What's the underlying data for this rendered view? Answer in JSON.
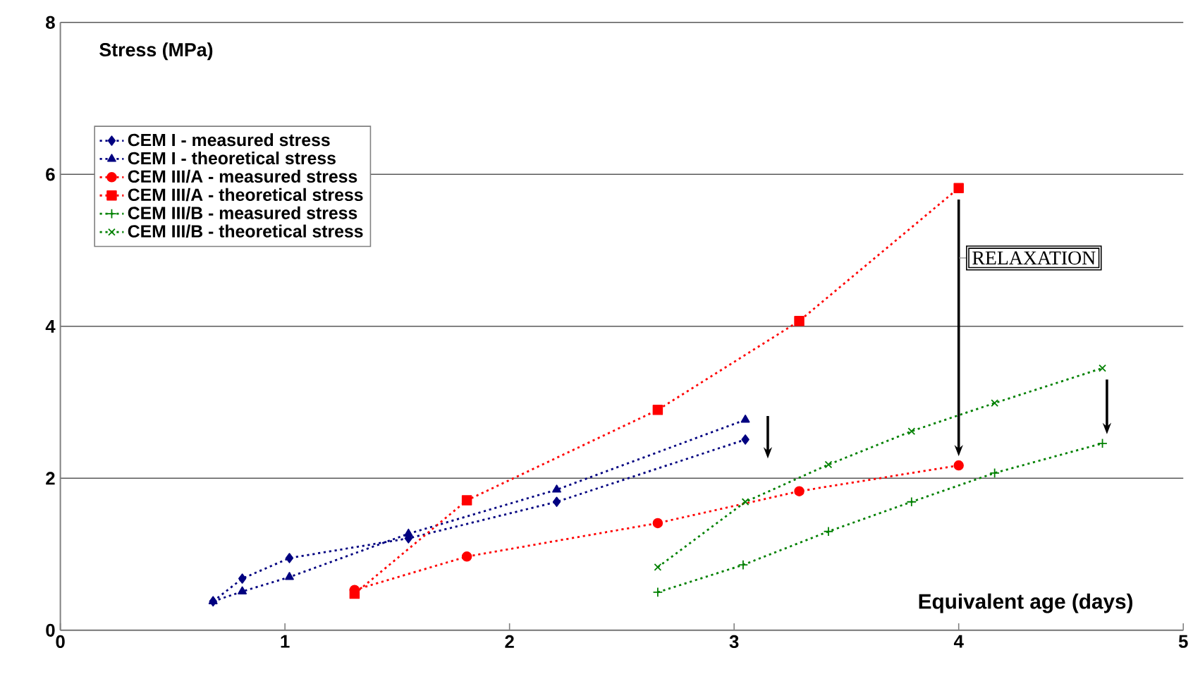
{
  "chart_data": {
    "type": "line",
    "xlabel": "Equivalent age (days)",
    "ylabel": "Stress (MPa)",
    "xlim": [
      0,
      5
    ],
    "xticks": [
      0,
      1,
      2,
      3,
      4,
      5
    ],
    "ylim": [
      0,
      8
    ],
    "yticks": [
      0,
      2,
      4,
      6,
      8
    ],
    "grid": "y",
    "legend": "top left",
    "line_style": "dotted",
    "annotations": [
      "RELAXATION"
    ],
    "series": [
      {
        "name": "CEM I - measured stress",
        "color": "#000080",
        "marker": "diamond",
        "x": [
          0.68,
          0.81,
          1.02,
          1.55,
          2.21,
          3.05
        ],
        "values": [
          0.38,
          0.68,
          0.95,
          1.21,
          1.69,
          2.51
        ]
      },
      {
        "name": "CEM I - theoretical stress",
        "color": "#000080",
        "marker": "triangle",
        "x": [
          0.68,
          0.81,
          1.02,
          1.55,
          2.21,
          3.05
        ],
        "values": [
          0.38,
          0.51,
          0.7,
          1.27,
          1.85,
          2.77
        ]
      },
      {
        "name": "CEM III/A - measured stress",
        "color": "#ff0000",
        "marker": "circle",
        "x": [
          1.31,
          1.81,
          2.66,
          3.29,
          4.0
        ],
        "values": [
          0.53,
          0.97,
          1.41,
          1.83,
          2.17
        ]
      },
      {
        "name": "CEM III/A - theoretical stress",
        "color": "#ff0000",
        "marker": "square",
        "x": [
          1.31,
          1.81,
          2.66,
          3.29,
          4.0
        ],
        "values": [
          0.48,
          1.71,
          2.9,
          4.07,
          5.82
        ]
      },
      {
        "name": "CEM III/B - measured stress",
        "color": "#008000",
        "marker": "plus",
        "x": [
          2.66,
          3.04,
          3.42,
          3.79,
          4.16,
          4.64
        ],
        "values": [
          0.5,
          0.86,
          1.3,
          1.69,
          2.07,
          2.46
        ]
      },
      {
        "name": "CEM III/B - theoretical stress",
        "color": "#008000",
        "marker": "cross",
        "x": [
          2.66,
          3.05,
          3.42,
          3.79,
          4.16,
          4.64
        ],
        "values": [
          0.83,
          1.69,
          2.18,
          2.62,
          2.99,
          3.45
        ]
      }
    ]
  }
}
